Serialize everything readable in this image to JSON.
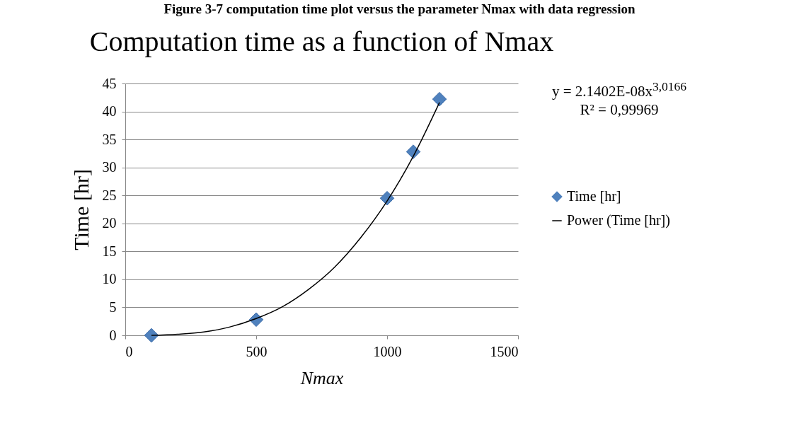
{
  "chart_data": {
    "type": "scatter",
    "title": "Computation time as a function of Nmax",
    "xlabel": "Nmax",
    "ylabel": "Time [hr]",
    "annotations": [
      "Figure 3-7 computation time plot versus the parameter Nmax with data regression",
      "y = 2.1402E-08x$^{3,0166}$",
      "R² = 0,99969"
    ],
    "xlim": [
      0,
      1500
    ],
    "xticks": [
      0,
      500,
      1000,
      1500
    ],
    "ylim": [
      0,
      45
    ],
    "yticks": [
      0,
      5,
      10,
      15,
      20,
      25,
      30,
      35,
      40,
      45
    ],
    "grid": "y",
    "legend": "right",
    "series": [
      {
        "name": "Time [hr]",
        "marker": "diamond",
        "color": "#4f81bd",
        "x": [
          100,
          500,
          1000,
          1100,
          1200
        ],
        "values": [
          0,
          2.8,
          24.5,
          32.8,
          42.2
        ]
      },
      {
        "name": "Power (Time [hr])",
        "type": "line",
        "color": "#000000",
        "x": [
          100,
          200,
          300,
          400,
          500,
          600,
          700,
          800,
          900,
          1000,
          1100,
          1200
        ],
        "values": [
          0.0,
          0.2,
          0.6,
          1.5,
          3.0,
          5.1,
          8.2,
          12.2,
          17.5,
          24.0,
          32.0,
          41.6
        ]
      }
    ]
  }
}
